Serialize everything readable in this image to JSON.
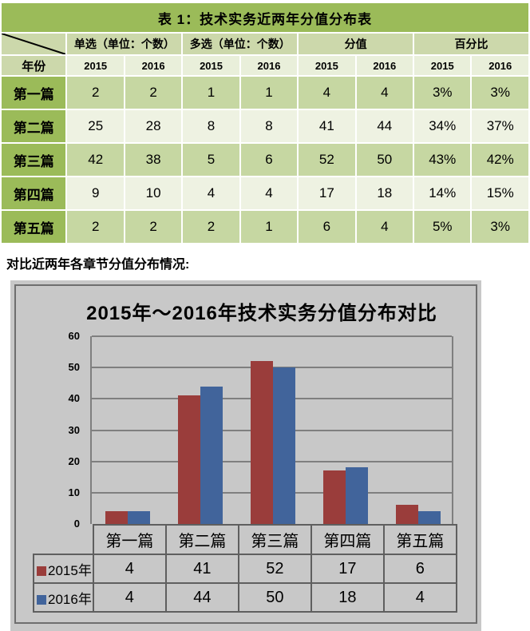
{
  "colors": {
    "green-dark": "#9bbb59",
    "green-header": "#ccd8ab",
    "green-year": "#e9efda",
    "row-odd": "#c6d7a2",
    "row-even": "#eef2e2",
    "chart-bg": "#c8c8c8",
    "chart-border": "#6e6e6e",
    "grid-line": "#7f7f7f",
    "chart-table-border": "#5f5f5f"
  },
  "table": {
    "title": "表 1：技术实务近两年分值分布表",
    "corner_label": "年份",
    "col_groups": [
      "单选（单位：个数）",
      "多选（单位：个数）",
      "分值",
      "百分比"
    ],
    "year_headers": [
      "2015",
      "2016",
      "2015",
      "2016",
      "2015",
      "2016",
      "2015",
      "2016"
    ],
    "rows": [
      {
        "label": "第一篇",
        "values": [
          "2",
          "2",
          "1",
          "1",
          "4",
          "4",
          "3%",
          "3%"
        ]
      },
      {
        "label": "第二篇",
        "values": [
          "25",
          "28",
          "8",
          "8",
          "41",
          "44",
          "34%",
          "37%"
        ]
      },
      {
        "label": "第三篇",
        "values": [
          "42",
          "38",
          "5",
          "6",
          "52",
          "50",
          "43%",
          "42%"
        ]
      },
      {
        "label": "第四篇",
        "values": [
          "9",
          "10",
          "4",
          "4",
          "17",
          "18",
          "14%",
          "15%"
        ]
      },
      {
        "label": "第五篇",
        "values": [
          "2",
          "2",
          "2",
          "1",
          "6",
          "4",
          "5%",
          "3%"
        ]
      }
    ]
  },
  "caption": "对比近两年各章节分值分布情况:",
  "chart_data": {
    "type": "bar",
    "title": "2015年～2016年技术实务分值分布对比",
    "categories": [
      "第一篇",
      "第二篇",
      "第三篇",
      "第四篇",
      "第五篇"
    ],
    "series": [
      {
        "name": "2015年",
        "color": "#9a3d3b",
        "values": [
          4,
          41,
          52,
          17,
          6
        ]
      },
      {
        "name": "2016年",
        "color": "#41649b",
        "values": [
          4,
          44,
          50,
          18,
          4
        ]
      }
    ],
    "ylim": [
      0,
      60
    ],
    "yticks": [
      0,
      10,
      20,
      30,
      40,
      50,
      60
    ],
    "grid": true,
    "legend_position": "bottom-table"
  }
}
